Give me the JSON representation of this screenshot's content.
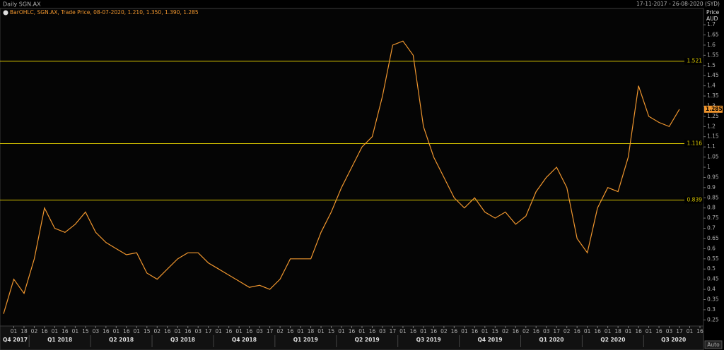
{
  "chart_data": {
    "type": "line",
    "title": "Daily SGN.AX",
    "date_range": "17-11-2017 - 26-08-2020 (SYD)",
    "legend_text": "BarOHLC, SGN.AX, Trade Price, 08-07-2020, 1.210, 1.350, 1.390, 1.285",
    "y_label": [
      "Price",
      "AUD"
    ],
    "scale_mode": "Auto",
    "categories": [
      null,
      "01",
      "18",
      "02",
      "16",
      "01",
      "16",
      "01",
      "15",
      "03",
      "16",
      "01",
      "16",
      "01",
      "15",
      "02",
      "16",
      "01",
      "16",
      "03",
      "17",
      "01",
      "16",
      "01",
      "16",
      "03",
      "17",
      "02",
      "16",
      "01",
      "18",
      "01",
      "15",
      "01",
      "16",
      "01",
      "16",
      "03",
      "17",
      "01",
      "16",
      "01",
      "16",
      "02",
      "16",
      "01",
      "16",
      "01",
      "15",
      "02",
      "16",
      "02",
      "16",
      "03",
      "17",
      "02",
      "16",
      "01",
      "16",
      "01",
      "18",
      "01",
      "16",
      "01",
      "16",
      "03",
      "17",
      "01",
      "16"
    ],
    "quarters": [
      {
        "label": "Q4 2017",
        "count": 3
      },
      {
        "label": "Q1 2018",
        "count": 6
      },
      {
        "label": "Q2 2018",
        "count": 6
      },
      {
        "label": "Q3 2018",
        "count": 6
      },
      {
        "label": "Q4 2018",
        "count": 6
      },
      {
        "label": "Q1 2019",
        "count": 6
      },
      {
        "label": "Q2 2019",
        "count": 6
      },
      {
        "label": "Q3 2019",
        "count": 6
      },
      {
        "label": "Q4 2019",
        "count": 6
      },
      {
        "label": "Q1 2020",
        "count": 6
      },
      {
        "label": "Q2 2020",
        "count": 6
      },
      {
        "label": "Q3 2020",
        "count": 6
      }
    ],
    "series": [
      {
        "name": "SGN.AX",
        "color": "#f0962e",
        "values": [
          0.28,
          0.45,
          0.38,
          0.55,
          0.8,
          0.7,
          0.68,
          0.72,
          0.78,
          0.68,
          0.63,
          0.6,
          0.57,
          0.58,
          0.48,
          0.45,
          0.5,
          0.55,
          0.58,
          0.58,
          0.53,
          0.5,
          0.47,
          0.44,
          0.41,
          0.42,
          0.4,
          0.45,
          0.55,
          0.55,
          0.55,
          0.68,
          0.78,
          0.9,
          1.0,
          1.1,
          1.15,
          1.35,
          1.6,
          1.62,
          1.55,
          1.2,
          1.05,
          0.95,
          0.85,
          0.8,
          0.85,
          0.78,
          0.75,
          0.78,
          0.72,
          0.76,
          0.88,
          0.95,
          1.0,
          0.9,
          0.65,
          0.58,
          0.8,
          0.9,
          0.88,
          1.05,
          1.4,
          1.25,
          1.22,
          1.2,
          1.285,
          null,
          null
        ]
      }
    ],
    "levels": [
      1.521,
      1.116,
      0.839
    ],
    "level_color": "#d9c600",
    "last_price": 1.285,
    "ylim": [
      0.22,
      1.78
    ],
    "yticks": [
      0.25,
      0.3,
      0.35,
      0.4,
      0.45,
      0.5,
      0.55,
      0.6,
      0.65,
      0.7,
      0.75,
      0.8,
      0.85,
      0.9,
      0.95,
      1,
      1.05,
      1.1,
      1.15,
      1.2,
      1.25,
      1.3,
      1.35,
      1.4,
      1.45,
      1.5,
      1.55,
      1.6,
      1.65,
      1.7
    ]
  }
}
